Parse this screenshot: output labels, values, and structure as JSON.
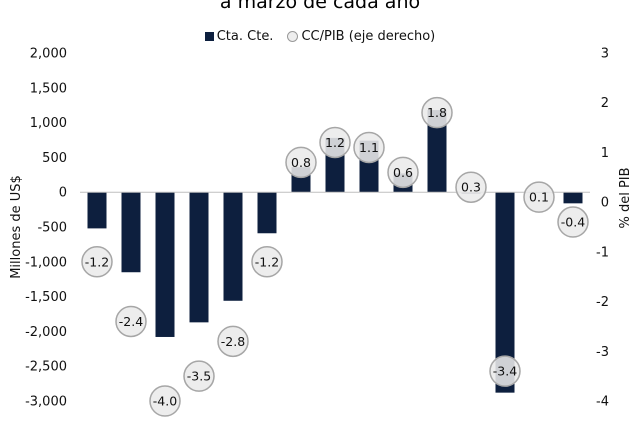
{
  "chart_data": {
    "type": "bar",
    "title": "a marzo de cada año",
    "ylabel": "Millones de US$",
    "y2label": "% del PIB",
    "ylim": [
      -3000,
      2000
    ],
    "y2lim": [
      -4,
      3
    ],
    "yticks": [
      "2,000",
      "1,500",
      "1,000",
      "500",
      "0",
      "-500",
      "-1,000",
      "-1,500",
      "-2,000",
      "-2,500",
      "-3,000"
    ],
    "y2ticks": [
      "3",
      "2",
      "1",
      "0",
      "-1",
      "-2",
      "-3",
      "-4"
    ],
    "grid": false,
    "legend_position": "top",
    "colors": {
      "bar": "#0d1f3e",
      "circle_fill": "#ebebeb",
      "circle_stroke": "#a6a6a6"
    },
    "series": [
      {
        "name": "Cta. Cte.",
        "axis": "left",
        "values": [
          -520,
          -1150,
          -2080,
          -1870,
          -1560,
          -590,
          360,
          780,
          740,
          270,
          1180,
          -20,
          -2880,
          -10,
          -160
        ]
      },
      {
        "name": "CC/PIB (eje derecho)",
        "axis": "right",
        "values": [
          -1.2,
          -2.4,
          -4.0,
          -3.5,
          -2.8,
          -1.2,
          0.8,
          1.2,
          1.1,
          0.6,
          1.8,
          0.3,
          -3.4,
          0.1,
          -0.4
        ],
        "labels": [
          "-1.2",
          "-2.4",
          "-4.0",
          "-3.5",
          "-2.8",
          "-1.2",
          "0.8",
          "1.2",
          "1.1",
          "0.6",
          "1.8",
          "0.3",
          "-3.4",
          "0.1",
          "-0.4"
        ]
      }
    ]
  }
}
